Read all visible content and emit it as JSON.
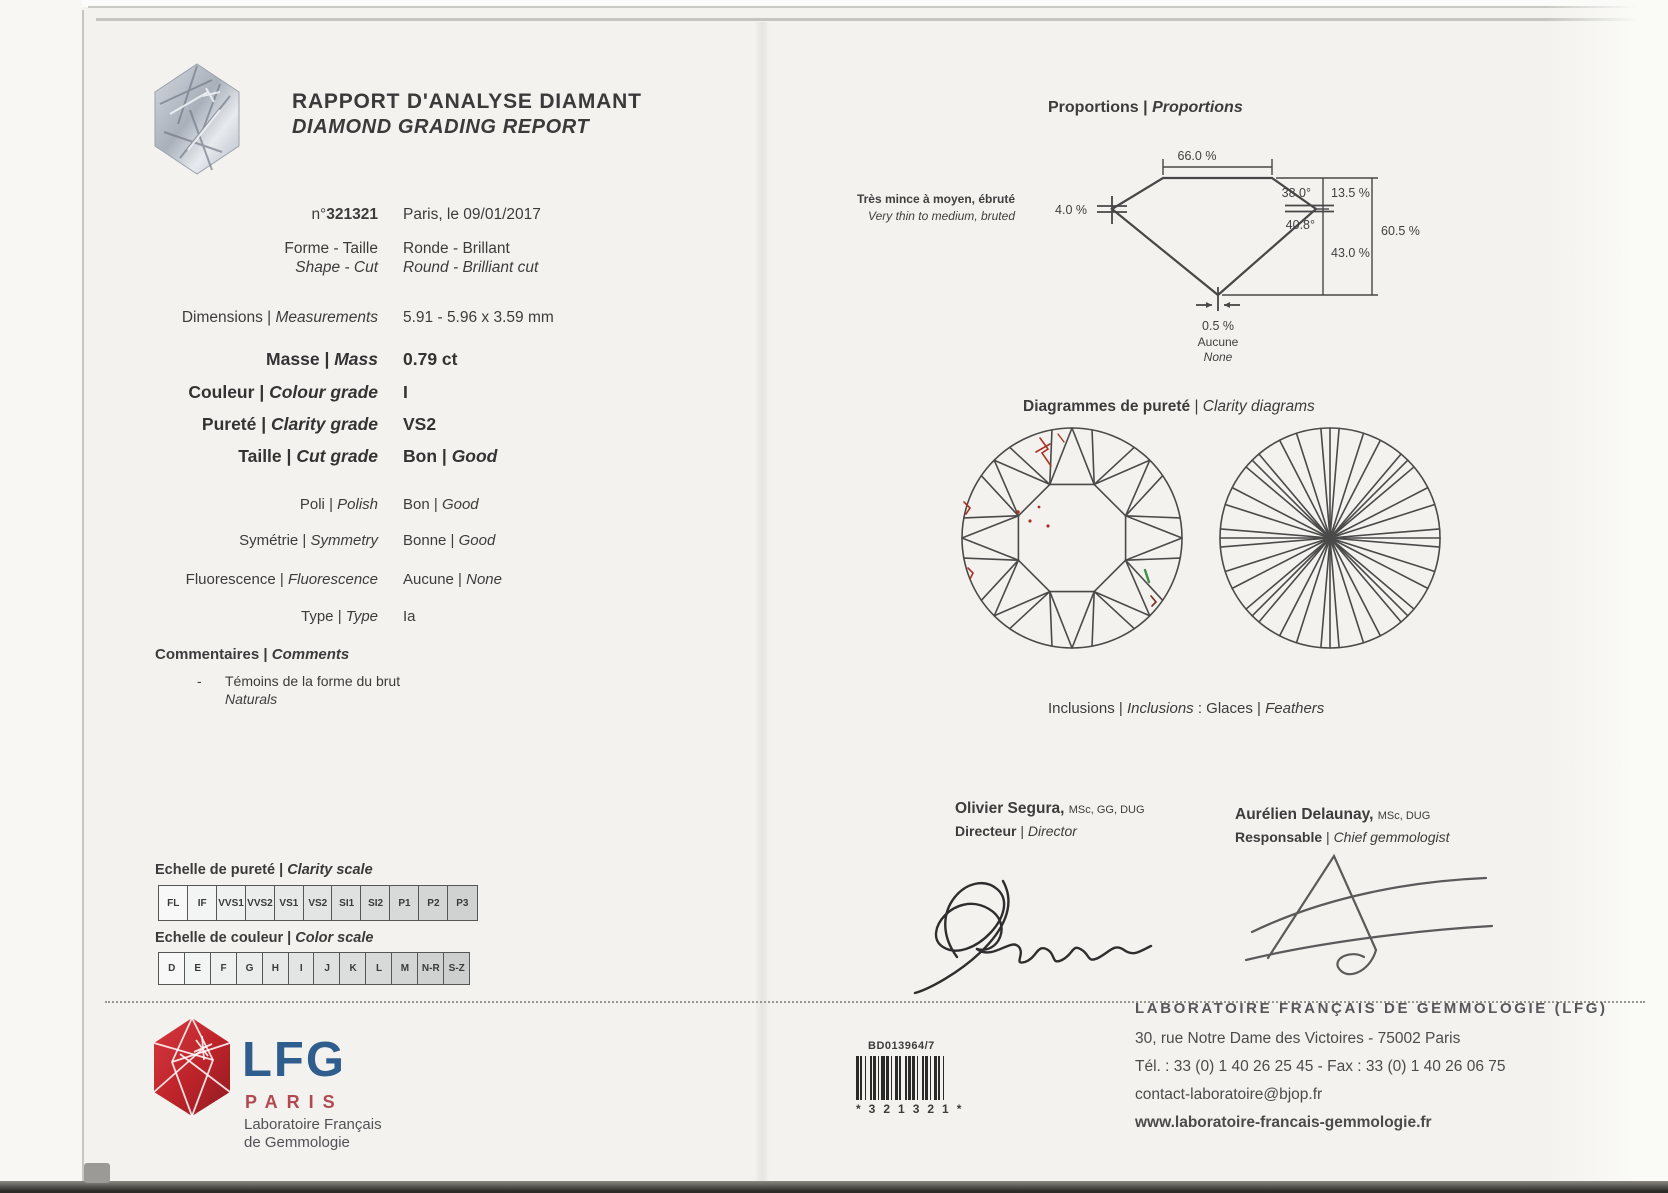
{
  "sep": "|",
  "header": {
    "title_fr": "RAPPORT D'ANALYSE DIAMANT",
    "title_en": "DIAMOND GRADING REPORT",
    "report_no_prefix": "n°",
    "report_no": "321321",
    "date": "Paris, le 09/01/2017"
  },
  "attributes": {
    "forme": {
      "fr": "Forme - Taille",
      "en": "Shape - Cut",
      "val_fr": "Ronde - Brillant",
      "val_en": "Round - Brilliant cut"
    },
    "dimensions": {
      "fr": "Dimensions",
      "en": "Measurements",
      "val": "5.91 - 5.96 x 3.59 mm"
    },
    "masse": {
      "fr": "Masse",
      "en": "Mass",
      "val": "0.79 ct"
    },
    "couleur": {
      "fr": "Couleur",
      "en": "Colour grade",
      "val": "I"
    },
    "purete": {
      "fr": "Pureté",
      "en": "Clarity grade",
      "val": "VS2"
    },
    "taille": {
      "fr": "Taille",
      "en": "Cut grade",
      "val_fr": "Bon",
      "val_en": "Good"
    },
    "poli": {
      "fr": "Poli",
      "en": "Polish",
      "val_fr": "Bon",
      "val_en": "Good"
    },
    "symetrie": {
      "fr": "Symétrie",
      "en": "Symmetry",
      "val_fr": "Bonne",
      "val_en": "Good"
    },
    "fluorescence": {
      "fr": "Fluorescence",
      "en": "Fluorescence",
      "val_fr": "Aucune",
      "val_en": "None"
    },
    "type": {
      "fr": "Type",
      "en": "Type",
      "val": "Ia"
    }
  },
  "comments": {
    "heading_fr": "Commentaires",
    "heading_en": "Comments",
    "bullet": "-",
    "text_fr": "Témoins de la forme du brut",
    "text_en": "Naturals"
  },
  "scales": {
    "clarity": {
      "label_fr": "Echelle de pureté",
      "label_en": "Clarity scale",
      "grades": [
        "FL",
        "IF",
        "VVS1",
        "VVS2",
        "VS1",
        "VS2",
        "SI1",
        "SI2",
        "P1",
        "P2",
        "P3"
      ]
    },
    "color": {
      "label_fr": "Echelle de couleur",
      "label_en": "Color scale",
      "grades": [
        "D",
        "E",
        "F",
        "G",
        "H",
        "I",
        "J",
        "K",
        "L",
        "M",
        "N-R",
        "S-Z"
      ]
    }
  },
  "proportions": {
    "title_fr": "Proportions",
    "title_en": "Proportions",
    "table_pct": "66.0 %",
    "crown_height_pct": "13.5 %",
    "crown_angle": "38.0°",
    "pavilion_angle": "40.8°",
    "pavilion_depth_pct": "43.0 %",
    "total_depth_pct": "60.5 %",
    "girdle_pct": "4.0 %",
    "girdle_fr": "Très mince à moyen, ébruté",
    "girdle_en": "Very thin to medium, bruted",
    "culet_pct": "0.5 %",
    "culet_fr": "Aucune",
    "culet_en": "None"
  },
  "clarity_diagrams": {
    "title_fr": "Diagrammes de pureté",
    "title_en": "Clarity diagrams",
    "caption_fr": "Inclusions",
    "caption_en": "Inclusions",
    "colon": ":",
    "inclusions_fr": "Glaces",
    "inclusions_en": "Feathers"
  },
  "signatures": [
    {
      "name": "Olivier Segura,",
      "credentials": "MSc, GG, DUG",
      "role_fr": "Directeur",
      "role_en": "Director"
    },
    {
      "name": "Aurélien Delaunay,",
      "credentials": "MSc, DUG",
      "role_fr": "Responsable",
      "role_en": "Chief gemmologist"
    }
  ],
  "footer": {
    "barcode_label": "BD013964/7",
    "barcode_digits": "*321321*",
    "org": "LABORATOIRE FRANÇAIS DE GEMMOLOGIE (LFG)",
    "address": "30, rue Notre Dame des Victoires - 75002 Paris",
    "phone": "Tél. : 33 (0) 1 40 26 25 45 - Fax : 33 (0) 1 40 26 06 75",
    "email": "contact-laboratoire@bjop.fr",
    "website": "www.laboratoire-francais-gemmologie.fr"
  },
  "logo": {
    "name": "LFG",
    "city": "PARIS",
    "sub1": "Laboratoire Français",
    "sub2": "de Gemmologie"
  },
  "colors": {
    "lfg_blue": "#2f5e8e",
    "lfg_red": "#c0272d",
    "paris_red": "#b04a50",
    "ink": "#3c3c3c",
    "inclusion_red": "#a93327",
    "inclusion_green": "#3f8f4a"
  }
}
